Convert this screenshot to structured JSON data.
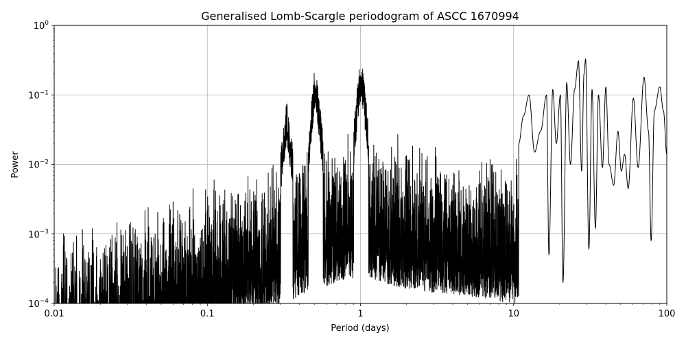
{
  "chart_data": {
    "type": "line",
    "title": "Generalised Lomb-Scargle periodogram of ASCC 1670994",
    "xlabel": "Period (days)",
    "ylabel": "Power",
    "x_scale": "log",
    "y_scale": "log",
    "xlim": [
      0.01,
      100
    ],
    "ylim": [
      0.0001,
      1
    ],
    "grid": true,
    "x_ticks": [
      {
        "value": 0.01,
        "label": "0.01"
      },
      {
        "value": 0.1,
        "label": "0.1"
      },
      {
        "value": 1,
        "label": "1"
      },
      {
        "value": 10,
        "label": "10"
      },
      {
        "value": 100,
        "label": "100"
      }
    ],
    "y_ticks": [
      {
        "value": 0.0001,
        "base": "10",
        "exp": "−4"
      },
      {
        "value": 0.001,
        "base": "10",
        "exp": "−3"
      },
      {
        "value": 0.01,
        "base": "10",
        "exp": "−2"
      },
      {
        "value": 0.1,
        "base": "10",
        "exp": "−1"
      },
      {
        "value": 1,
        "base": "10",
        "exp": "0"
      }
    ],
    "line_color": "#000000",
    "peaks": [
      {
        "x": 0.33,
        "y": 0.085
      },
      {
        "x": 0.5,
        "y": 0.23
      },
      {
        "x": 0.52,
        "y": 0.17
      },
      {
        "x": 0.99,
        "y": 0.32
      },
      {
        "x": 1.03,
        "y": 0.27
      },
      {
        "x": 26.5,
        "y": 0.31
      },
      {
        "x": 29.5,
        "y": 0.33
      },
      {
        "x": 71,
        "y": 0.18
      },
      {
        "x": 90,
        "y": 0.13
      }
    ],
    "series": [
      {
        "x": [
          10.8,
          11.6,
          12.6,
          13.7,
          15.0,
          16.4,
          17.0,
          18.0,
          19.0,
          20.2,
          21.0,
          22.2,
          23.5,
          25.0,
          26.5,
          27.8,
          28.8,
          29.5,
          31.0,
          32.5,
          34.2,
          35.8,
          38.0,
          40.0,
          42.0,
          45.0,
          48.0,
          50.5,
          53.0,
          56.0,
          60.5,
          65.0,
          71.0,
          76.0,
          79.0,
          83.0,
          90.0,
          95.0,
          100.0
        ],
        "y": [
          0.02,
          0.05,
          0.1,
          0.015,
          0.03,
          0.1,
          0.0005,
          0.12,
          0.02,
          0.1,
          0.0002,
          0.15,
          0.01,
          0.12,
          0.31,
          0.008,
          0.2,
          0.33,
          0.0006,
          0.12,
          0.0012,
          0.1,
          0.009,
          0.13,
          0.01,
          0.005,
          0.03,
          0.008,
          0.014,
          0.0045,
          0.09,
          0.009,
          0.18,
          0.03,
          0.0008,
          0.06,
          0.13,
          0.06,
          0.014
        ]
      }
    ]
  }
}
